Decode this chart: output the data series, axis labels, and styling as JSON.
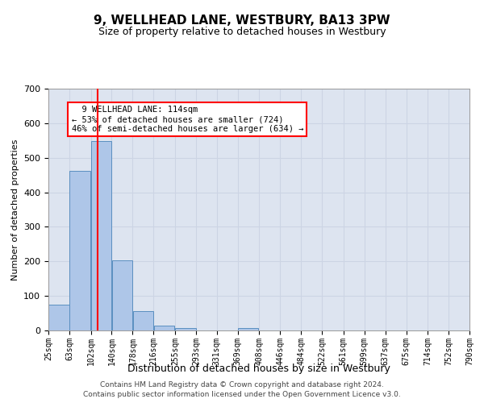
{
  "title1": "9, WELLHEAD LANE, WESTBURY, BA13 3PW",
  "title2": "Size of property relative to detached houses in Westbury",
  "xlabel": "Distribution of detached houses by size in Westbury",
  "ylabel": "Number of detached properties",
  "footer1": "Contains HM Land Registry data © Crown copyright and database right 2024.",
  "footer2": "Contains public sector information licensed under the Open Government Licence v3.0.",
  "annotation_line1": "  9 WELLHEAD LANE: 114sqm  ",
  "annotation_line2": "← 53% of detached houses are smaller (724)",
  "annotation_line3": "46% of semi-detached houses are larger (634) →",
  "bar_left_edges": [
    25,
    63,
    102,
    140,
    178,
    216,
    255,
    293,
    331,
    369,
    408,
    446,
    484,
    522,
    561,
    599,
    637,
    675,
    714,
    752
  ],
  "bar_widths": [
    38,
    38,
    38,
    38,
    38,
    38,
    38,
    38,
    38,
    38,
    38,
    38,
    38,
    38,
    38,
    38,
    38,
    38,
    38,
    38
  ],
  "bar_heights": [
    75,
    462,
    549,
    202,
    55,
    13,
    8,
    0,
    0,
    8,
    0,
    0,
    0,
    0,
    0,
    0,
    0,
    0,
    0,
    0
  ],
  "bar_color": "#aec6e8",
  "bar_edge_color": "#5a8fc0",
  "x_tick_labels": [
    "25sqm",
    "63sqm",
    "102sqm",
    "140sqm",
    "178sqm",
    "216sqm",
    "255sqm",
    "293sqm",
    "331sqm",
    "369sqm",
    "408sqm",
    "446sqm",
    "484sqm",
    "522sqm",
    "561sqm",
    "599sqm",
    "637sqm",
    "675sqm",
    "714sqm",
    "752sqm",
    "790sqm"
  ],
  "x_tick_positions": [
    25,
    63,
    102,
    140,
    178,
    216,
    255,
    293,
    331,
    369,
    408,
    446,
    484,
    522,
    561,
    599,
    637,
    675,
    714,
    752,
    790
  ],
  "ylim": [
    0,
    700
  ],
  "xlim": [
    25,
    790
  ],
  "yticks": [
    0,
    100,
    200,
    300,
    400,
    500,
    600,
    700
  ],
  "redline_x": 114,
  "grid_color": "#ccd4e4",
  "background_color": "#dde4f0",
  "fig_background": "#ffffff"
}
